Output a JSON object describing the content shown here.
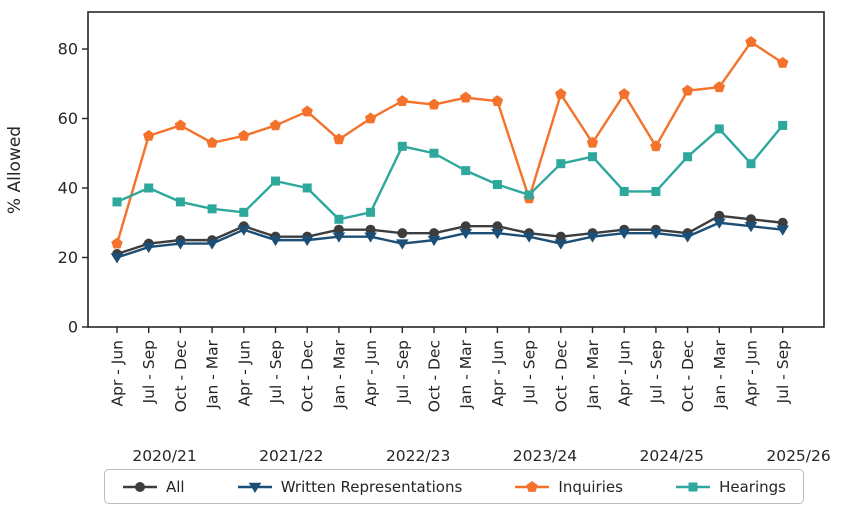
{
  "chart_data": {
    "type": "line",
    "title": "",
    "xlabel": "",
    "ylabel": "% Allowed",
    "ylim": [
      0,
      90.5
    ],
    "yticks": [
      0,
      20,
      40,
      60,
      80
    ],
    "grid": false,
    "legend_position": "bottom",
    "categories": [
      "Apr - Jun",
      "Jul - Sep",
      "Oct - Dec",
      "Jan - Mar",
      "Apr - Jun",
      "Jul - Sep",
      "Oct - Dec",
      "Jan - Mar",
      "Apr - Jun",
      "Jul - Sep",
      "Oct - Dec",
      "Jan - Mar",
      "Apr - Jun",
      "Jul - Sep",
      "Oct - Dec",
      "Jan - Mar",
      "Apr - Jun",
      "Jul - Sep",
      "Oct - Dec",
      "Jan - Mar",
      "Apr - Jun",
      "Jul - Sep"
    ],
    "year_groups": [
      {
        "label": "2020/21",
        "center_index": 1.5
      },
      {
        "label": "2021/22",
        "center_index": 5.5
      },
      {
        "label": "2022/23",
        "center_index": 9.5
      },
      {
        "label": "2023/24",
        "center_index": 13.5
      },
      {
        "label": "2024/25",
        "center_index": 17.5
      },
      {
        "label": "2025/26",
        "center_index": 21.5
      }
    ],
    "series": [
      {
        "name": "All",
        "marker": "circle",
        "color": "#3d3d3d",
        "values": [
          21,
          24,
          25,
          25,
          29,
          26,
          26,
          28,
          28,
          27,
          27,
          29,
          29,
          27,
          26,
          27,
          28,
          28,
          27,
          32,
          31,
          30
        ]
      },
      {
        "name": "Written Representations",
        "marker": "triangle-down",
        "color": "#1d4f76",
        "values": [
          20,
          23,
          24,
          24,
          28,
          25,
          25,
          26,
          26,
          24,
          25,
          27,
          27,
          26,
          24,
          26,
          27,
          27,
          26,
          30,
          29,
          28
        ]
      },
      {
        "name": "Inquiries",
        "marker": "pentagon",
        "color": "#f4722b",
        "values": [
          24,
          55,
          58,
          53,
          55,
          58,
          62,
          54,
          60,
          65,
          64,
          66,
          65,
          37,
          67,
          53,
          67,
          52,
          68,
          69,
          82,
          76
        ]
      },
      {
        "name": "Hearings",
        "marker": "square",
        "color": "#2ea89c",
        "values": [
          36,
          40,
          36,
          34,
          33,
          42,
          40,
          31,
          33,
          52,
          50,
          45,
          41,
          38,
          47,
          49,
          39,
          39,
          49,
          57,
          47,
          58
        ]
      }
    ],
    "axis_color": "#262626"
  }
}
